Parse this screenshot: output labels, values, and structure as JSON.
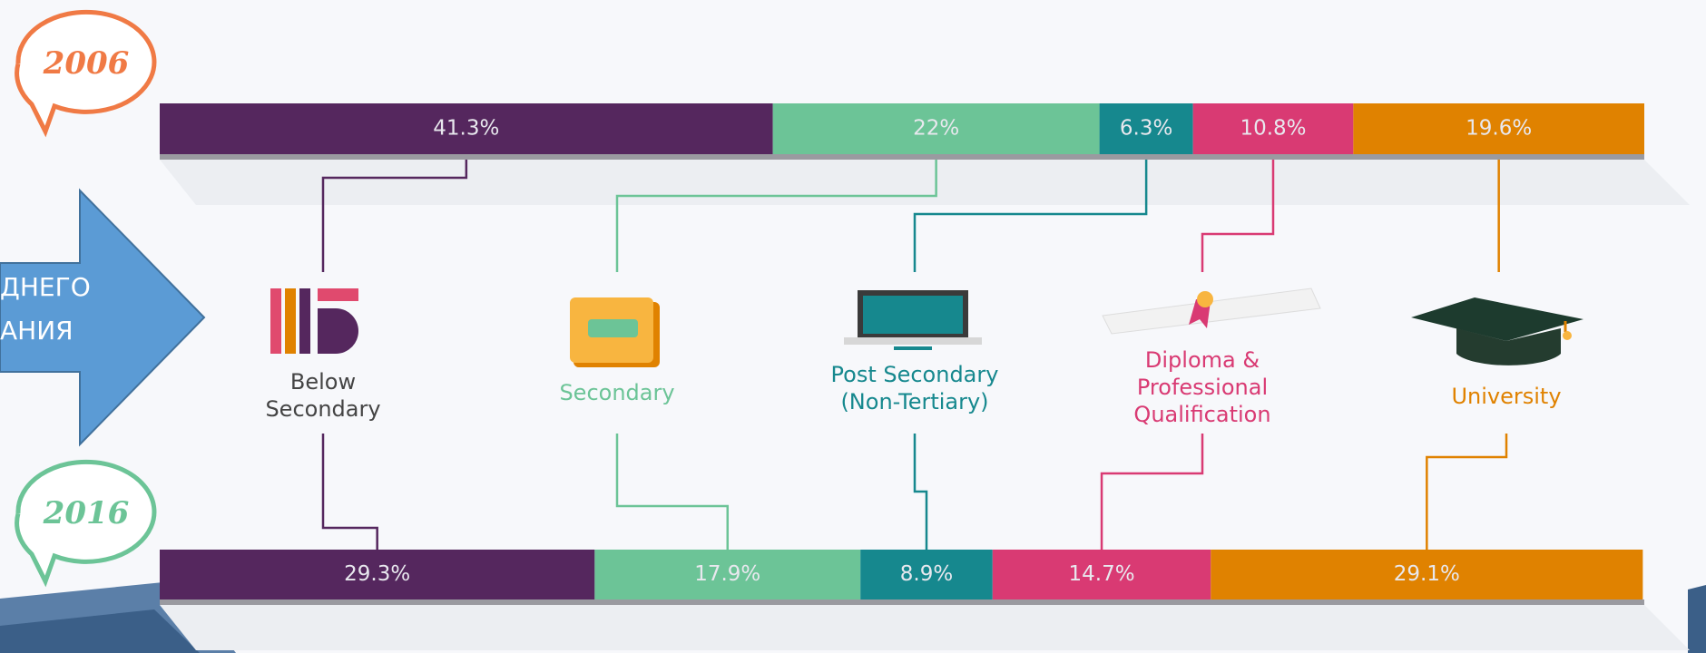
{
  "chart_data": {
    "type": "stacked-bar",
    "categories": [
      "2006",
      "2016"
    ],
    "xlim": [
      0,
      100
    ],
    "series": [
      {
        "name": "Below Secondary",
        "color": "#55275e",
        "values": [
          41.3,
          29.3
        ],
        "value_labels": [
          "41.3%",
          "29.3%"
        ]
      },
      {
        "name": "Secondary",
        "color": "#6cc497",
        "values": [
          22,
          17.9
        ],
        "value_labels": [
          "22%",
          "17.9%"
        ]
      },
      {
        "name": "Post Secondary (Non-Tertiary)",
        "color": "#16888e",
        "values": [
          6.3,
          8.9
        ],
        "value_labels": [
          "6.3%",
          "8.9%"
        ]
      },
      {
        "name": "Diploma & Professional Qualification",
        "color": "#d93a73",
        "values": [
          10.8,
          14.7
        ],
        "value_labels": [
          "10.8%",
          "14.7%"
        ]
      },
      {
        "name": "University",
        "color": "#e08200",
        "values": [
          19.6,
          29.1
        ],
        "value_labels": [
          "19.6%",
          "29.1%"
        ]
      }
    ],
    "annotations": [
      "ДНЕГО",
      "АНИЯ"
    ]
  }
}
